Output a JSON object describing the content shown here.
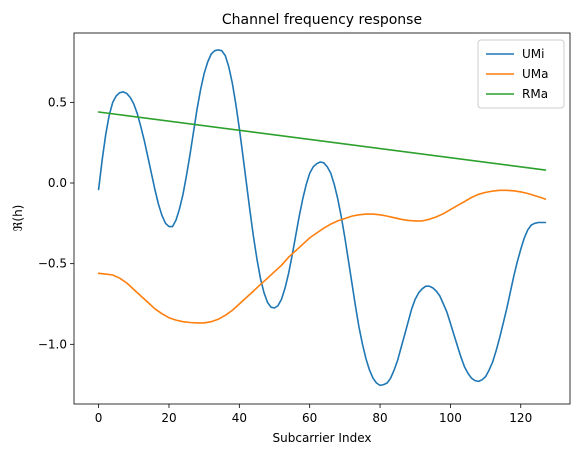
{
  "chart_data": {
    "type": "line",
    "title": "Channel frequency response",
    "xlabel": "Subcarrier Index",
    "ylabel": "ℜ(h)",
    "xlim": [
      -7,
      134
    ],
    "ylim": [
      -1.37,
      0.93
    ],
    "xticks": [
      0,
      20,
      40,
      60,
      80,
      100,
      120
    ],
    "xtick_labels": [
      "0",
      "20",
      "40",
      "60",
      "80",
      "100",
      "120"
    ],
    "yticks": [
      -1.0,
      -0.5,
      0.0,
      0.5
    ],
    "ytick_labels": [
      "−1.0",
      "−0.5",
      "0.0",
      "0.5"
    ],
    "grid": false,
    "legend_position": "upper right",
    "series": [
      {
        "name": "UMi",
        "color": "#1f77b4",
        "points": [
          [
            0,
            -0.04
          ],
          [
            1,
            0.14
          ],
          [
            2,
            0.3
          ],
          [
            3,
            0.42
          ],
          [
            4,
            0.5
          ],
          [
            5,
            0.54
          ],
          [
            6,
            0.56
          ],
          [
            7,
            0.565
          ],
          [
            8,
            0.555
          ],
          [
            9,
            0.53
          ],
          [
            10,
            0.49
          ],
          [
            11,
            0.43
          ],
          [
            12,
            0.35
          ],
          [
            13,
            0.26
          ],
          [
            14,
            0.16
          ],
          [
            15,
            0.06
          ],
          [
            16,
            -0.04
          ],
          [
            17,
            -0.13
          ],
          [
            18,
            -0.2
          ],
          [
            19,
            -0.25
          ],
          [
            20,
            -0.27
          ],
          [
            21,
            -0.27
          ],
          [
            22,
            -0.23
          ],
          [
            23,
            -0.16
          ],
          [
            24,
            -0.07
          ],
          [
            25,
            0.05
          ],
          [
            26,
            0.18
          ],
          [
            27,
            0.32
          ],
          [
            28,
            0.46
          ],
          [
            29,
            0.58
          ],
          [
            30,
            0.68
          ],
          [
            31,
            0.75
          ],
          [
            32,
            0.8
          ],
          [
            33,
            0.82
          ],
          [
            34,
            0.825
          ],
          [
            35,
            0.82
          ],
          [
            36,
            0.79
          ],
          [
            37,
            0.72
          ],
          [
            38,
            0.62
          ],
          [
            39,
            0.49
          ],
          [
            40,
            0.34
          ],
          [
            41,
            0.17
          ],
          [
            42,
            0.0
          ],
          [
            43,
            -0.17
          ],
          [
            44,
            -0.33
          ],
          [
            45,
            -0.47
          ],
          [
            46,
            -0.59
          ],
          [
            47,
            -0.68
          ],
          [
            48,
            -0.74
          ],
          [
            49,
            -0.77
          ],
          [
            50,
            -0.775
          ],
          [
            51,
            -0.76
          ],
          [
            52,
            -0.72
          ],
          [
            53,
            -0.65
          ],
          [
            54,
            -0.56
          ],
          [
            55,
            -0.45
          ],
          [
            56,
            -0.33
          ],
          [
            57,
            -0.21
          ],
          [
            58,
            -0.1
          ],
          [
            59,
            -0.01
          ],
          [
            60,
            0.06
          ],
          [
            61,
            0.1
          ],
          [
            62,
            0.12
          ],
          [
            63,
            0.13
          ],
          [
            64,
            0.125
          ],
          [
            65,
            0.1
          ],
          [
            66,
            0.06
          ],
          [
            67,
            -0.01
          ],
          [
            68,
            -0.1
          ],
          [
            69,
            -0.21
          ],
          [
            70,
            -0.34
          ],
          [
            71,
            -0.48
          ],
          [
            72,
            -0.62
          ],
          [
            73,
            -0.76
          ],
          [
            74,
            -0.89
          ],
          [
            75,
            -1.0
          ],
          [
            76,
            -1.09
          ],
          [
            77,
            -1.16
          ],
          [
            78,
            -1.21
          ],
          [
            79,
            -1.24
          ],
          [
            80,
            -1.255
          ],
          [
            81,
            -1.25
          ],
          [
            82,
            -1.24
          ],
          [
            83,
            -1.21
          ],
          [
            84,
            -1.16
          ],
          [
            85,
            -1.1
          ],
          [
            86,
            -1.02
          ],
          [
            87,
            -0.94
          ],
          [
            88,
            -0.86
          ],
          [
            89,
            -0.78
          ],
          [
            90,
            -0.72
          ],
          [
            91,
            -0.68
          ],
          [
            92,
            -0.655
          ],
          [
            93,
            -0.64
          ],
          [
            94,
            -0.64
          ],
          [
            95,
            -0.65
          ],
          [
            96,
            -0.67
          ],
          [
            97,
            -0.7
          ],
          [
            98,
            -0.75
          ],
          [
            99,
            -0.8
          ],
          [
            100,
            -0.87
          ],
          [
            101,
            -0.94
          ],
          [
            102,
            -1.01
          ],
          [
            103,
            -1.08
          ],
          [
            104,
            -1.14
          ],
          [
            105,
            -1.18
          ],
          [
            106,
            -1.21
          ],
          [
            107,
            -1.225
          ],
          [
            108,
            -1.23
          ],
          [
            109,
            -1.22
          ],
          [
            110,
            -1.2
          ],
          [
            111,
            -1.16
          ],
          [
            112,
            -1.11
          ],
          [
            113,
            -1.04
          ],
          [
            114,
            -0.96
          ],
          [
            115,
            -0.87
          ],
          [
            116,
            -0.78
          ],
          [
            117,
            -0.68
          ],
          [
            118,
            -0.58
          ],
          [
            119,
            -0.49
          ],
          [
            120,
            -0.41
          ],
          [
            121,
            -0.34
          ],
          [
            122,
            -0.29
          ],
          [
            123,
            -0.26
          ],
          [
            124,
            -0.25
          ],
          [
            125,
            -0.245
          ],
          [
            126,
            -0.245
          ],
          [
            127,
            -0.245
          ]
        ]
      },
      {
        "name": "UMa",
        "color": "#ff7f0e",
        "points": [
          [
            0,
            -0.56
          ],
          [
            2,
            -0.565
          ],
          [
            4,
            -0.57
          ],
          [
            6,
            -0.59
          ],
          [
            8,
            -0.62
          ],
          [
            10,
            -0.66
          ],
          [
            12,
            -0.7
          ],
          [
            14,
            -0.74
          ],
          [
            16,
            -0.78
          ],
          [
            18,
            -0.81
          ],
          [
            20,
            -0.835
          ],
          [
            22,
            -0.85
          ],
          [
            24,
            -0.86
          ],
          [
            26,
            -0.865
          ],
          [
            28,
            -0.867
          ],
          [
            30,
            -0.867
          ],
          [
            32,
            -0.86
          ],
          [
            34,
            -0.845
          ],
          [
            36,
            -0.82
          ],
          [
            38,
            -0.79
          ],
          [
            40,
            -0.75
          ],
          [
            42,
            -0.71
          ],
          [
            44,
            -0.67
          ],
          [
            46,
            -0.63
          ],
          [
            48,
            -0.59
          ],
          [
            50,
            -0.55
          ],
          [
            52,
            -0.51
          ],
          [
            54,
            -0.46
          ],
          [
            56,
            -0.42
          ],
          [
            58,
            -0.38
          ],
          [
            60,
            -0.34
          ],
          [
            62,
            -0.31
          ],
          [
            64,
            -0.28
          ],
          [
            66,
            -0.255
          ],
          [
            68,
            -0.235
          ],
          [
            70,
            -0.22
          ],
          [
            72,
            -0.205
          ],
          [
            74,
            -0.197
          ],
          [
            76,
            -0.193
          ],
          [
            78,
            -0.193
          ],
          [
            80,
            -0.197
          ],
          [
            82,
            -0.205
          ],
          [
            84,
            -0.215
          ],
          [
            86,
            -0.225
          ],
          [
            88,
            -0.232
          ],
          [
            90,
            -0.235
          ],
          [
            92,
            -0.235
          ],
          [
            94,
            -0.225
          ],
          [
            96,
            -0.21
          ],
          [
            98,
            -0.19
          ],
          [
            100,
            -0.165
          ],
          [
            102,
            -0.14
          ],
          [
            104,
            -0.115
          ],
          [
            106,
            -0.09
          ],
          [
            108,
            -0.07
          ],
          [
            110,
            -0.058
          ],
          [
            112,
            -0.05
          ],
          [
            114,
            -0.045
          ],
          [
            116,
            -0.045
          ],
          [
            118,
            -0.048
          ],
          [
            120,
            -0.055
          ],
          [
            122,
            -0.065
          ],
          [
            124,
            -0.078
          ],
          [
            126,
            -0.092
          ],
          [
            127,
            -0.1
          ]
        ]
      },
      {
        "name": "RMa",
        "color": "#2ca02c",
        "points": [
          [
            0,
            0.44
          ],
          [
            127,
            0.08
          ]
        ]
      }
    ]
  }
}
